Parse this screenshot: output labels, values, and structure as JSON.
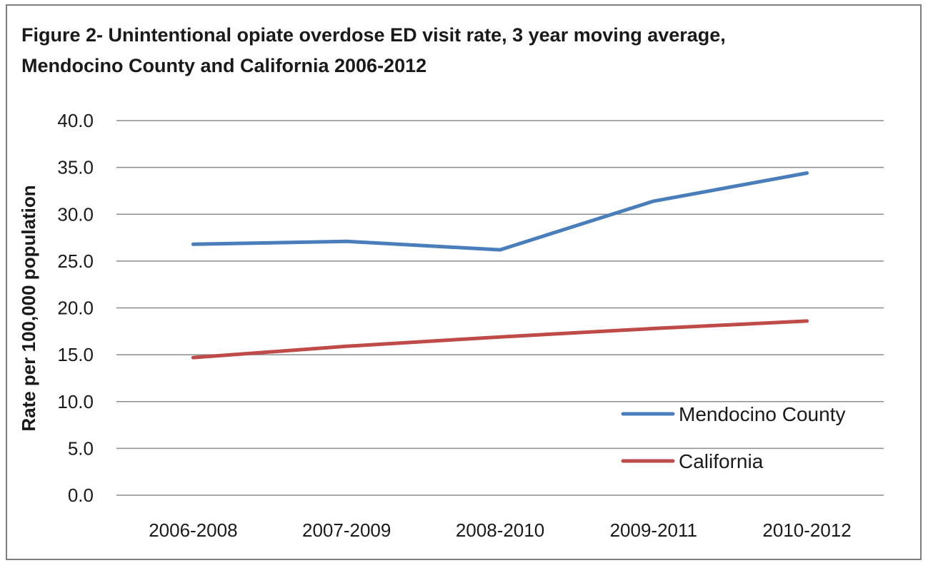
{
  "chart_data": {
    "type": "line",
    "title": "Figure 2- Unintentional opiate overdose ED visit rate, 3 year moving average, Mendocino County and California 2006-2012",
    "xlabel": "",
    "ylabel": "Rate per 100,000 population",
    "ylim": [
      0,
      40
    ],
    "yticks": [
      "0.0",
      "5.0",
      "10.0",
      "15.0",
      "20.0",
      "25.0",
      "30.0",
      "35.0",
      "40.0"
    ],
    "categories": [
      "2006-2008",
      "2007-2009",
      "2008-2010",
      "2009-2011",
      "2010-2012"
    ],
    "grid": true,
    "legend_position": "bottom-right",
    "series": [
      {
        "name": "Mendocino County",
        "color": "#4a7ebb",
        "values": [
          26.8,
          27.1,
          26.2,
          31.4,
          34.4
        ]
      },
      {
        "name": "California",
        "color": "#be4b48",
        "values": [
          14.7,
          15.9,
          16.9,
          17.8,
          18.6
        ]
      }
    ]
  }
}
